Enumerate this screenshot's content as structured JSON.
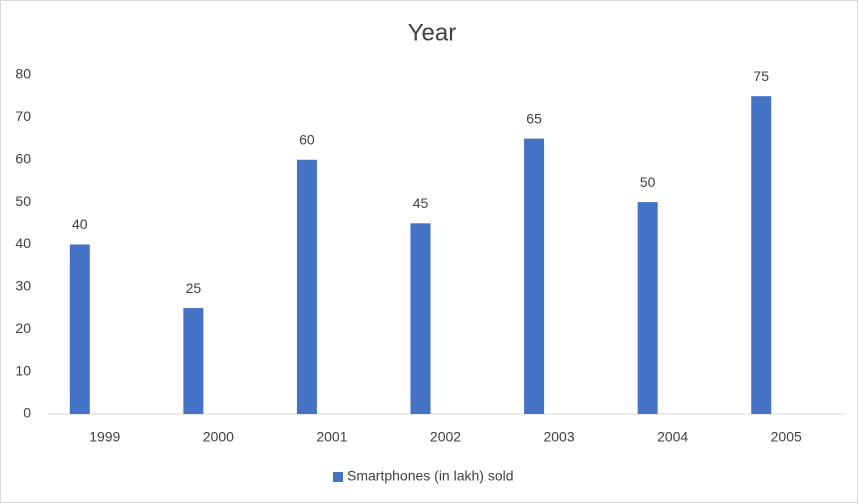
{
  "chart_data": {
    "type": "bar",
    "title": "Year",
    "categories": [
      "1999",
      "2000",
      "2001",
      "2002",
      "2003",
      "2004",
      "2005"
    ],
    "series": [
      {
        "name": "Smartphones (in lakh) sold",
        "color": "#4472c4",
        "values": [
          40,
          25,
          60,
          45,
          65,
          50,
          75
        ]
      }
    ],
    "ylim": [
      0,
      80
    ],
    "yticks": [
      0,
      10,
      20,
      30,
      40,
      50,
      60,
      70,
      80
    ],
    "grid": false,
    "data_labels": true,
    "legend": "bottom"
  }
}
